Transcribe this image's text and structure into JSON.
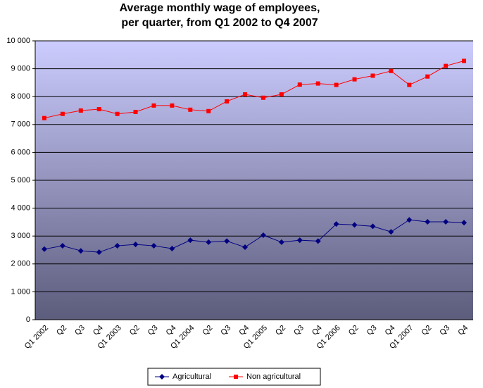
{
  "chart_data": {
    "type": "line",
    "title": [
      "Average monthly wage of employees,",
      "per quarter, from Q1 2002 to Q4 2007"
    ],
    "categories": [
      "Q1 2002",
      "Q2",
      "Q3",
      "Q4",
      "Q1 2003",
      "Q2",
      "Q3",
      "Q4",
      "Q1 2004",
      "Q2",
      "Q3",
      "Q4",
      "Q1 2005",
      "Q2",
      "Q3",
      "Q4",
      "Q1 2006",
      "Q2",
      "Q3",
      "Q4",
      "Q1 2007",
      "Q2",
      "Q3",
      "Q4"
    ],
    "series": [
      {
        "name": "Agricultural",
        "color": "#000080",
        "marker": "diamond",
        "values": [
          2530,
          2650,
          2470,
          2420,
          2650,
          2700,
          2650,
          2550,
          2850,
          2780,
          2820,
          2600,
          3030,
          2780,
          2850,
          2820,
          3430,
          3400,
          3350,
          3150,
          3580,
          3510,
          3510,
          3480
        ]
      },
      {
        "name": "Non agricultural",
        "color": "#ff0000",
        "marker": "square",
        "values": [
          7230,
          7380,
          7500,
          7550,
          7380,
          7450,
          7680,
          7680,
          7530,
          7480,
          7830,
          8080,
          7960,
          8080,
          8430,
          8470,
          8420,
          8620,
          8750,
          8920,
          8420,
          8720,
          9100,
          9280
        ]
      }
    ],
    "ylim": [
      0,
      10000
    ],
    "yticks": [
      0,
      {
        "value": 1000,
        "label": "1 000"
      },
      {
        "value": 2000,
        "label": "2 000"
      },
      {
        "value": 3000,
        "label": "3 000"
      },
      {
        "value": 4000,
        "label": "4 000"
      },
      {
        "value": 5000,
        "label": "5 000"
      },
      {
        "value": 6000,
        "label": "6 000"
      },
      {
        "value": 7000,
        "label": "7 000"
      },
      {
        "value": 8000,
        "label": "8 000"
      },
      {
        "value": 9000,
        "label": "9 000"
      },
      {
        "value": 10000,
        "label": "10 000"
      }
    ],
    "grid": true,
    "legend": "bottom"
  }
}
